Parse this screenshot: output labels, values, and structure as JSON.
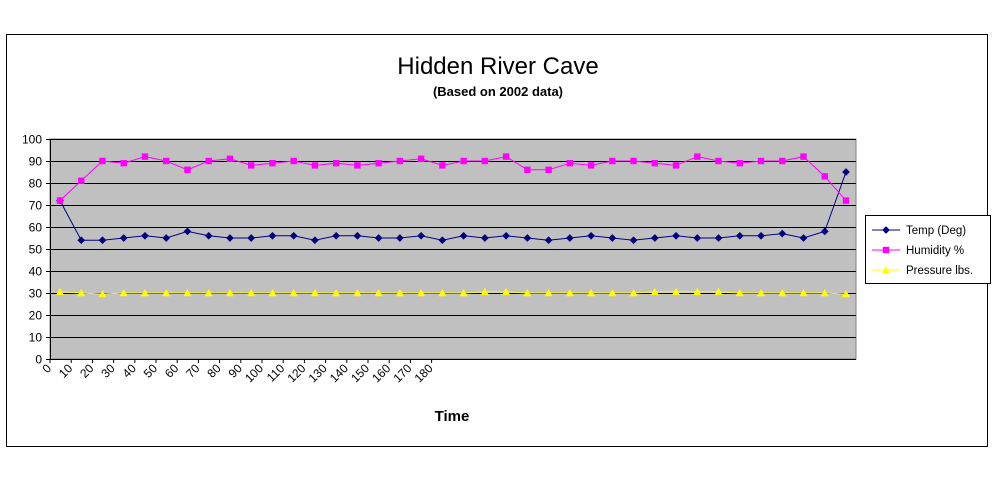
{
  "chart_data": {
    "type": "line",
    "title": "Hidden River Cave",
    "subtitle": "(Based on 2002 data)",
    "xlabel": "Time",
    "ylabel": "",
    "ylim": [
      0,
      100
    ],
    "yticks": [
      0,
      10,
      20,
      30,
      40,
      50,
      60,
      70,
      80,
      90,
      100
    ],
    "xticks": [
      "0",
      "10",
      "20",
      "30",
      "40",
      "50",
      "60",
      "70",
      "80",
      "90",
      "100",
      "110",
      "120",
      "130",
      "140",
      "150",
      "160",
      "170",
      "180"
    ],
    "grid": "horizontal",
    "plot_background": "#c0c0c0",
    "legend_position": "right",
    "series": [
      {
        "name": "Temp (Deg)",
        "color": "#000080",
        "marker": "diamond",
        "values": [
          72,
          54,
          54,
          55,
          56,
          55,
          58,
          56,
          55,
          55,
          56,
          56,
          54,
          56,
          56,
          55,
          55,
          56,
          54,
          56,
          55,
          56,
          55,
          54,
          55,
          56,
          55,
          54,
          55,
          56,
          55,
          55,
          56,
          56,
          57,
          55,
          58,
          85
        ]
      },
      {
        "name": "Humidity %",
        "color": "#ff00ff",
        "marker": "square",
        "values": [
          72,
          81,
          90,
          89,
          92,
          90,
          86,
          90,
          91,
          88,
          89,
          90,
          88,
          89,
          88,
          89,
          90,
          91,
          88,
          90,
          90,
          92,
          86,
          86,
          89,
          88,
          90,
          90,
          89,
          88,
          92,
          90,
          89,
          90,
          90,
          92,
          83,
          72
        ]
      },
      {
        "name": "Pressure lbs.",
        "color": "#ffff00",
        "marker": "triangle",
        "values": [
          30.5,
          30,
          29.5,
          30,
          30,
          30,
          30,
          30,
          30,
          30,
          30,
          30,
          30,
          30,
          30,
          30,
          30,
          30,
          30,
          30,
          30.5,
          30.5,
          30,
          30,
          30,
          30,
          30,
          30,
          30.5,
          30.5,
          30.5,
          30.5,
          30,
          30,
          30,
          30,
          30,
          29.5
        ]
      }
    ]
  }
}
